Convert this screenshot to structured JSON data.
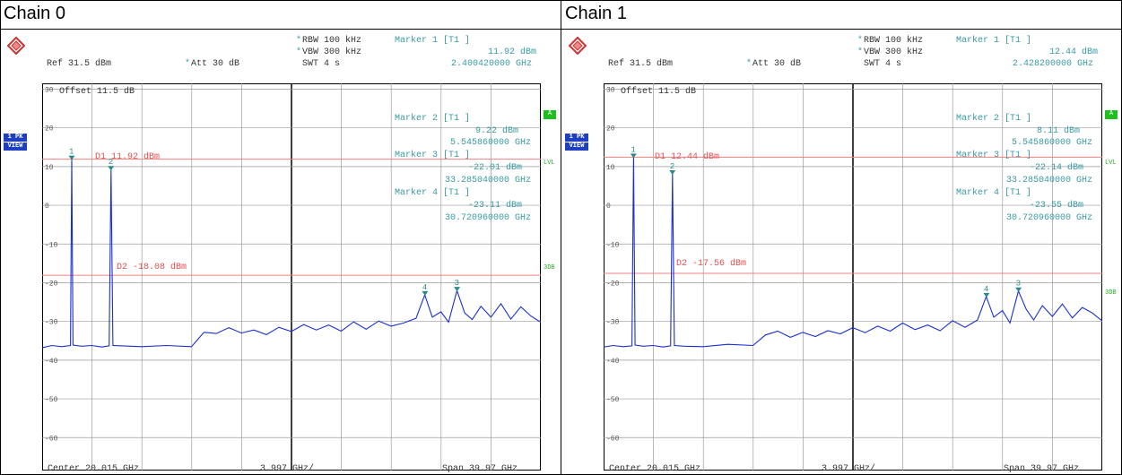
{
  "panels": [
    {
      "title": "Chain 0",
      "header": {
        "rbw": "RBW 100 kHz",
        "vbw": "VBW 300 kHz",
        "swt": "SWT 4 s",
        "ref": "Ref  31.5 dBm",
        "att": "Att  30 dB",
        "m1_label": "Marker 1 [T1 ]",
        "m1_level": "11.92 dBm",
        "m1_freq": "2.400420000 GHz",
        "star": "*"
      },
      "offset": "Offset  11.5 dB",
      "markers_text": [
        {
          "label": "Marker 2 [T1 ]",
          "level": "9.22 dBm",
          "freq": "5.545860000 GHz"
        },
        {
          "label": "Marker 3 [T1 ]",
          "level": "-22.01 dBm",
          "freq": "33.285040000 GHz"
        },
        {
          "label": "Marker 4 [T1 ]",
          "level": "-23.11 dBm",
          "freq": "30.720960000 GHz"
        }
      ],
      "d1": "D1 11.92 dBm",
      "d2": "D2 -18.08 dBm",
      "side": {
        "pk": "1 PK",
        "view": "VIEW",
        "a": "A",
        "lvl": "LVL",
        "3db": "3DB"
      },
      "footer": {
        "center": "Center 20.015 GHz",
        "div": "3.997 GHz/",
        "span": "Span 39.97 GHz"
      }
    },
    {
      "title": "Chain 1",
      "header": {
        "rbw": "RBW 100 kHz",
        "vbw": "VBW 300 kHz",
        "swt": "SWT 4 s",
        "ref": "Ref  31.5 dBm",
        "att": "Att  30 dB",
        "m1_label": "Marker 1 [T1 ]",
        "m1_level": "12.44 dBm",
        "m1_freq": "2.428200000 GHz",
        "star": "*"
      },
      "offset": "Offset  11.5 dB",
      "markers_text": [
        {
          "label": "Marker 2 [T1 ]",
          "level": "8.11 dBm",
          "freq": "5.545860000 GHz"
        },
        {
          "label": "Marker 3 [T1 ]",
          "level": "-22.14 dBm",
          "freq": "33.285040000 GHz"
        },
        {
          "label": "Marker 4 [T1 ]",
          "level": "-23.55 dBm",
          "freq": "30.720960000 GHz"
        }
      ],
      "d1": "D1 12.44 dBm",
      "d2": "D2 -17.56 dBm",
      "side": {
        "pk": "1 PK",
        "view": "VIEW",
        "a": "A",
        "lvl": "LVL",
        "3db": "3DB"
      },
      "footer": {
        "center": "Center 20.015 GHz",
        "div": "3.997 GHz/",
        "span": "Span 39.97 GHz"
      }
    }
  ],
  "chart_data": [
    {
      "type": "line",
      "title": "Chain 0",
      "xlabel": "",
      "ylabel": "",
      "xlim": [
        0.03,
        40.0
      ],
      "ylim": [
        -68.5,
        31.5
      ],
      "y_ticks": [
        30,
        20,
        10,
        0,
        -10,
        -20,
        -30,
        -40,
        -50,
        -60
      ],
      "grid": true,
      "ref_lines": [
        {
          "name": "D1 11.92 dBm",
          "y": 11.92
        },
        {
          "name": "D2 -18.08 dBm",
          "y": -18.08
        }
      ],
      "markers": [
        {
          "id": "1",
          "x": 2.40042,
          "y": 11.92
        },
        {
          "id": "2",
          "x": 5.54586,
          "y": 9.22
        },
        {
          "id": "3",
          "x": 33.28504,
          "y": -22.01
        },
        {
          "id": "4",
          "x": 30.72096,
          "y": -23.11
        }
      ],
      "series": [
        {
          "values_x": [
            0.03,
            0.8,
            1.6,
            2.3,
            2.4,
            2.5,
            3.2,
            4.0,
            4.8,
            5.4,
            5.55,
            5.7,
            6.5,
            8,
            10,
            12,
            13,
            14,
            15,
            16,
            17,
            18,
            19,
            20,
            21,
            22,
            23,
            24,
            25,
            26,
            27,
            28,
            29,
            30,
            30.7,
            31.3,
            32,
            32.6,
            33.28,
            33.9,
            34.5,
            35.2,
            36,
            36.8,
            37.6,
            38.4,
            39.2,
            40
          ],
          "values_y": [
            -36.8,
            -36.2,
            -36.5,
            -36.2,
            11.92,
            -36.1,
            -36.4,
            -36.2,
            -36.6,
            -36.3,
            9.22,
            -36.2,
            -36.3,
            -36.5,
            -36.2,
            -36.5,
            -32.8,
            -33.1,
            -31.6,
            -33,
            -32.2,
            -33.4,
            -31.5,
            -32.6,
            -30.8,
            -32.2,
            -30.9,
            -32.5,
            -30.1,
            -32,
            -29.9,
            -31.2,
            -30.4,
            -29.2,
            -23.11,
            -28.9,
            -27.5,
            -30.2,
            -22.01,
            -27.8,
            -29.5,
            -26.1,
            -28.9,
            -25.4,
            -29.4,
            -26.2,
            -28.6,
            -30.2
          ]
        }
      ]
    },
    {
      "type": "line",
      "title": "Chain 1",
      "xlabel": "",
      "ylabel": "",
      "xlim": [
        0.03,
        40.0
      ],
      "ylim": [
        -68.5,
        31.5
      ],
      "y_ticks": [
        30,
        20,
        10,
        0,
        -10,
        -20,
        -30,
        -40,
        -50,
        -60
      ],
      "grid": true,
      "ref_lines": [
        {
          "name": "D1 12.44 dBm",
          "y": 12.44
        },
        {
          "name": "D2 -17.56 dBm",
          "y": -17.56
        }
      ],
      "markers": [
        {
          "id": "1",
          "x": 2.4282,
          "y": 12.44
        },
        {
          "id": "2",
          "x": 5.54586,
          "y": 8.11
        },
        {
          "id": "3",
          "x": 33.28504,
          "y": -22.14
        },
        {
          "id": "4",
          "x": 30.72096,
          "y": -23.55
        }
      ],
      "series": [
        {
          "values_x": [
            0.03,
            0.8,
            1.6,
            2.3,
            2.43,
            2.55,
            3.2,
            4.0,
            4.8,
            5.4,
            5.55,
            5.7,
            6.5,
            8,
            10,
            12,
            13,
            14,
            15,
            16,
            17,
            18,
            19,
            20,
            21,
            22,
            23,
            24,
            25,
            26,
            27,
            28,
            29,
            30,
            30.7,
            31.3,
            32,
            32.6,
            33.28,
            33.9,
            34.5,
            35.2,
            36,
            36.8,
            37.6,
            38.4,
            39.2,
            40
          ],
          "values_y": [
            -36.6,
            -36.2,
            -36.5,
            -36.3,
            12.44,
            -36.1,
            -36.4,
            -36.2,
            -36.6,
            -36.3,
            8.11,
            -36.2,
            -36.4,
            -36.5,
            -35.9,
            -36.2,
            -33.5,
            -32.5,
            -34.1,
            -32.8,
            -33.9,
            -32.4,
            -33.2,
            -31.6,
            -32.9,
            -31.2,
            -32.5,
            -30.4,
            -32.1,
            -30.9,
            -32.4,
            -29.8,
            -31.5,
            -29.6,
            -23.55,
            -28.9,
            -27.2,
            -30.4,
            -22.14,
            -26.8,
            -29.6,
            -25.9,
            -28.7,
            -25.5,
            -29.1,
            -26.4,
            -27.8,
            -29.9
          ]
        }
      ]
    }
  ]
}
